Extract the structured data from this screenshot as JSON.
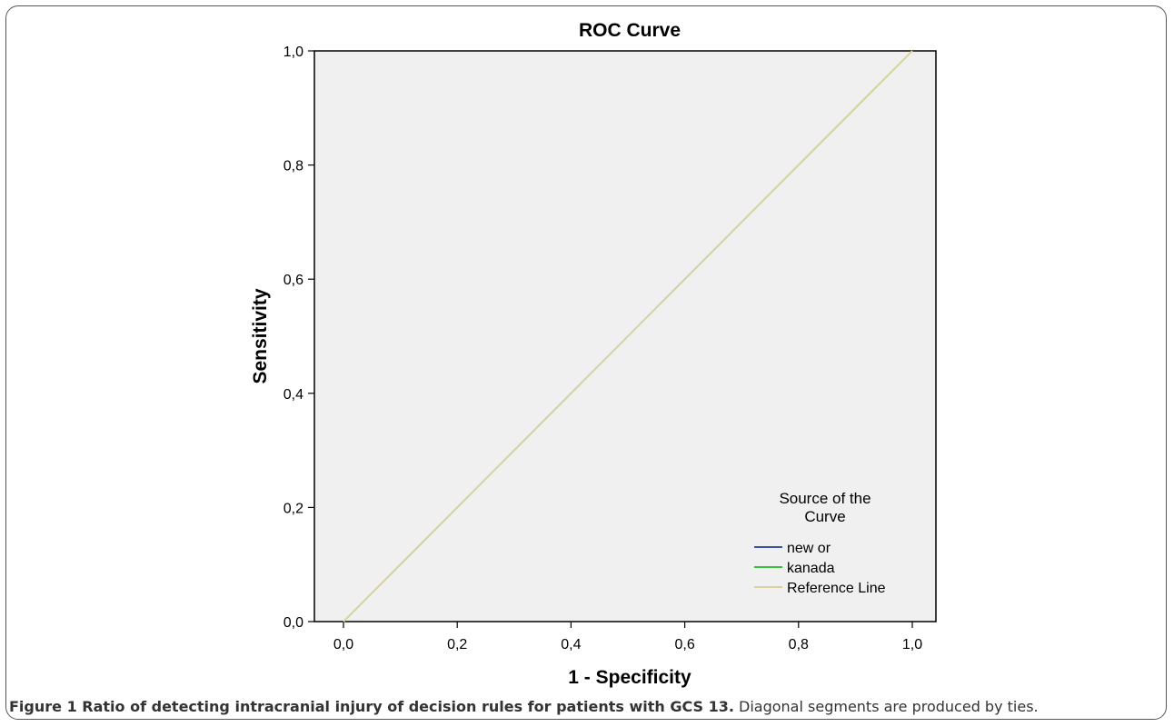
{
  "chart_data": {
    "type": "line",
    "title": "ROC Curve",
    "xlabel": "1 - Specificity",
    "ylabel": "Sensitivity",
    "xlim": [
      0,
      1
    ],
    "ylim": [
      0,
      1
    ],
    "x_ticks": [
      "0,0",
      "0,2",
      "0,4",
      "0,6",
      "0,8",
      "1,0"
    ],
    "y_ticks": [
      "0,0",
      "0,2",
      "0,4",
      "0,6",
      "0,8",
      "1,0"
    ],
    "grid": false,
    "legend_position": "bottom-right",
    "legend_title": [
      "Source of the",
      "Curve"
    ],
    "background_color": "#f0f0f0",
    "series": [
      {
        "name": "new or",
        "color": "#3c52a3",
        "x": [
          0,
          1
        ],
        "y": [
          0,
          1
        ]
      },
      {
        "name": "kanada",
        "color": "#3cbf3c",
        "x": [
          0,
          1
        ],
        "y": [
          0,
          1
        ]
      },
      {
        "name": "Reference Line",
        "color": "#d8d3a2",
        "x": [
          0,
          1
        ],
        "y": [
          0,
          1
        ]
      }
    ]
  },
  "caption": {
    "label": "Figure 1",
    "bold_text": "Ratio of detecting intracranial injury of decision rules for patients with  GCS 13.",
    "text": " Diagonal segments are produced by ties."
  }
}
